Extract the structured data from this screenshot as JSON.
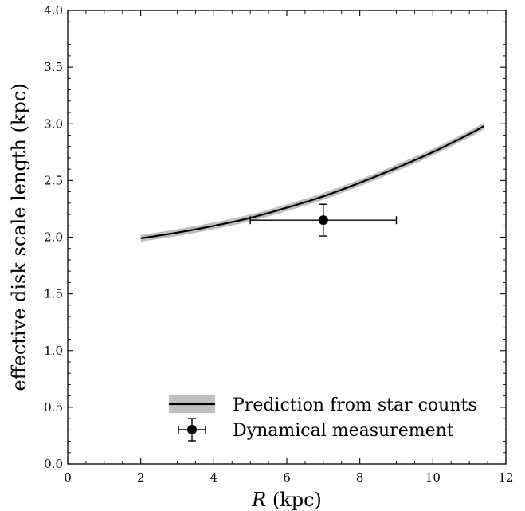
{
  "chart_data": {
    "type": "line",
    "xlabel": {
      "italic": "R",
      "rest": " (kpc)"
    },
    "ylabel": "effective disk scale length (kpc)",
    "xlim": [
      0,
      12
    ],
    "ylim": [
      0.0,
      4.0
    ],
    "x_ticks": [
      "0",
      "2",
      "4",
      "6",
      "8",
      "10",
      "12"
    ],
    "y_ticks": [
      "0.0",
      "0.5",
      "1.0",
      "1.5",
      "2.0",
      "2.5",
      "3.0",
      "3.5",
      "4.0"
    ],
    "grid": false,
    "legend_position": "lower-right",
    "series": [
      {
        "name": "Prediction from star counts",
        "kind": "line-with-band",
        "line_color": "#000000",
        "band_color": "#bfbfbf",
        "band_halfwidth": 0.03,
        "x": [
          2.0,
          3.0,
          4.0,
          5.0,
          6.0,
          7.0,
          8.0,
          9.0,
          10.0,
          11.0,
          11.4
        ],
        "y": [
          1.99,
          2.04,
          2.1,
          2.17,
          2.26,
          2.36,
          2.48,
          2.61,
          2.75,
          2.91,
          2.98
        ]
      },
      {
        "name": "Dynamical measurement",
        "kind": "errorbar",
        "color": "#000000",
        "x": 7.0,
        "y": 2.15,
        "xerr": [
          2.0,
          2.0
        ],
        "yerr": [
          0.14,
          0.14
        ]
      }
    ]
  }
}
